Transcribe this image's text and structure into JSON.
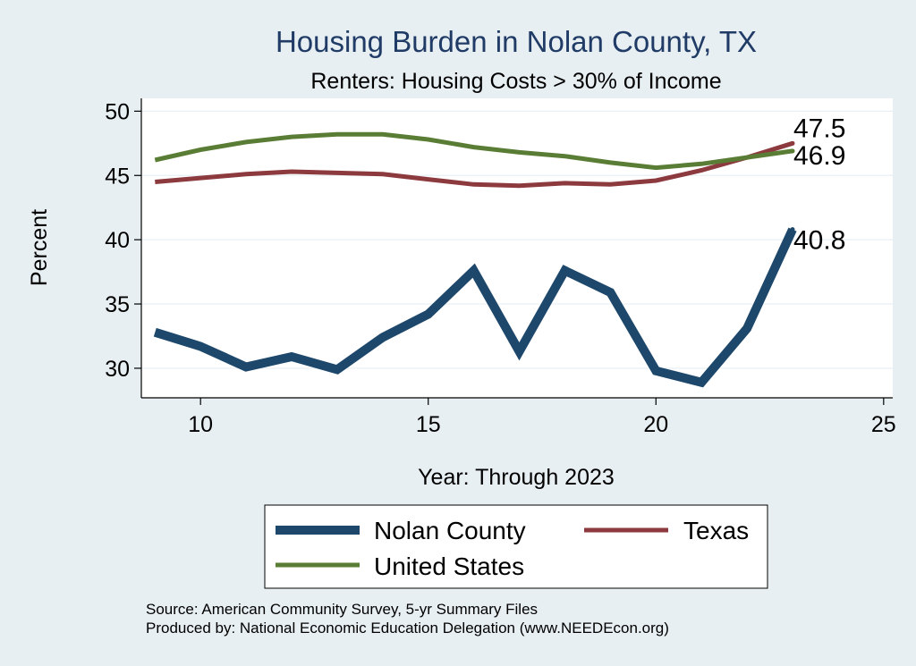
{
  "colors": {
    "background": "#e8eff3",
    "plot_background": "#ffffff",
    "gridline": "#e8eff3",
    "title": "#1f3b66",
    "nolan": "#1d476b",
    "texas": "#8d3a3f",
    "us": "#5a7d35"
  },
  "chart_data": {
    "type": "line",
    "title": "Housing Burden in Nolan County, TX",
    "subtitle": "Renters: Housing Costs > 30% of Income",
    "xlabel": "Year: Through 2023",
    "ylabel": "Percent",
    "xlim": [
      8.7,
      25.2
    ],
    "ylim": [
      27.7,
      51.0
    ],
    "xticks": [
      10,
      15,
      20,
      25
    ],
    "yticks": [
      30,
      35,
      40,
      45,
      50
    ],
    "grid": true,
    "legend_position": "bottom",
    "x": [
      9,
      10,
      11,
      12,
      13,
      14,
      15,
      16,
      17,
      18,
      19,
      20,
      21,
      22,
      23
    ],
    "series": [
      {
        "name": "Nolan County",
        "color_key": "nolan",
        "values": [
          32.8,
          31.7,
          30.1,
          30.9,
          29.9,
          32.4,
          34.2,
          37.6,
          31.3,
          37.6,
          35.9,
          29.8,
          28.9,
          33.1,
          40.8
        ],
        "end_label": "40.8"
      },
      {
        "name": "Texas",
        "color_key": "texas",
        "values": [
          44.5,
          44.8,
          45.1,
          45.3,
          45.2,
          45.1,
          44.7,
          44.3,
          44.2,
          44.4,
          44.3,
          44.6,
          45.4,
          46.4,
          47.5
        ],
        "end_label": "47.5"
      },
      {
        "name": "United States",
        "color_key": "us",
        "values": [
          46.2,
          47.0,
          47.6,
          48.0,
          48.2,
          48.2,
          47.8,
          47.2,
          46.8,
          46.5,
          46.0,
          45.6,
          45.9,
          46.4,
          46.9
        ],
        "end_label": "46.9"
      }
    ],
    "notes": [
      "Source: American Community Survey, 5-yr Summary Files",
      "Produced by: National Economic Education Delegation (www.NEEDEcon.org)"
    ]
  }
}
